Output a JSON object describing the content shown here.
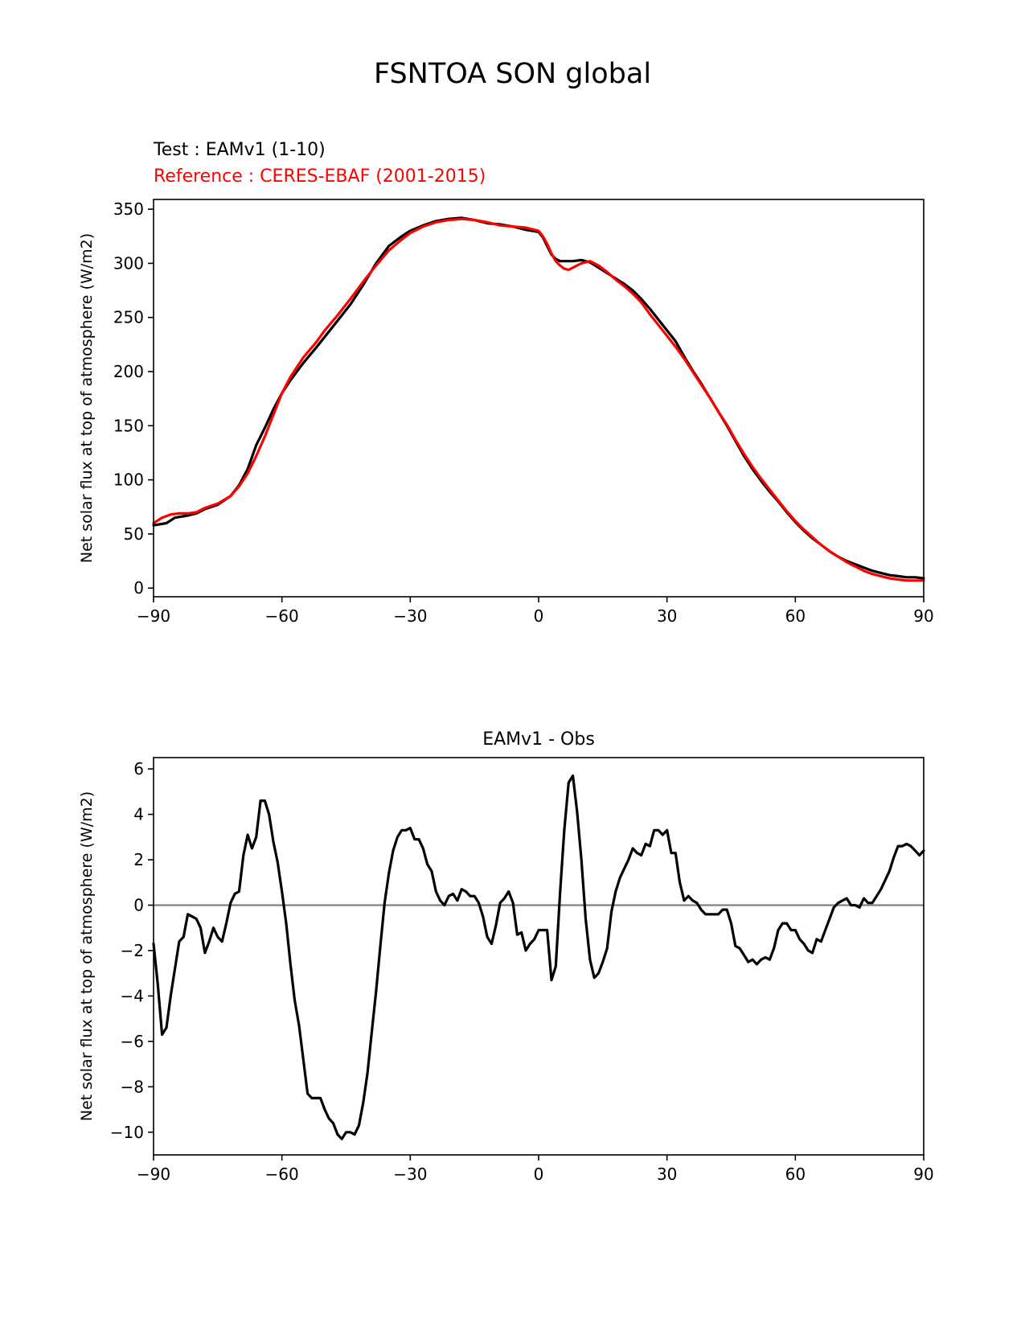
{
  "page": {
    "title": "FSNTOA SON global"
  },
  "chart_data": [
    {
      "type": "line",
      "title": "",
      "test_label": "Test : EAMv1 (1-10)",
      "reference_label": "Reference : CERES-EBAF (2001-2015)",
      "xlabel": "",
      "ylabel": "Net solar flux at top of atmosphere (W/m2)",
      "xlim": [
        -90,
        90
      ],
      "ylim": [
        -8,
        359
      ],
      "xticks": [
        -90,
        -60,
        -30,
        0,
        30,
        60,
        90
      ],
      "xtick_labels": [
        "−90",
        "−60",
        "−30",
        "0",
        "30",
        "60",
        "90"
      ],
      "yticks": [
        0,
        50,
        100,
        150,
        200,
        250,
        300,
        350
      ],
      "ytick_labels": [
        "0",
        "50",
        "100",
        "150",
        "200",
        "250",
        "300",
        "350"
      ],
      "grid": false,
      "series": [
        {
          "name": "EAMv1 (1-10)",
          "color": "#000000",
          "x": [
            -90,
            -87,
            -85,
            -82,
            -80,
            -78,
            -75,
            -72,
            -70,
            -68,
            -66,
            -64,
            -62,
            -60,
            -58,
            -55,
            -52,
            -50,
            -47,
            -44,
            -41,
            -38,
            -35,
            -32,
            -30,
            -27,
            -24,
            -21,
            -18,
            -15,
            -12,
            -9,
            -6,
            -3,
            0,
            1,
            2,
            3,
            4,
            5,
            6,
            8,
            10,
            12,
            14,
            16,
            18,
            20,
            22,
            24,
            26,
            28,
            30,
            32,
            34,
            36,
            38,
            40,
            42,
            44,
            46,
            48,
            50,
            52,
            54,
            56,
            58,
            60,
            62,
            64,
            66,
            68,
            70,
            72,
            74,
            76,
            78,
            80,
            82,
            84,
            86,
            88,
            90
          ],
          "y": [
            58,
            60,
            65,
            67,
            69,
            73,
            77,
            85,
            95,
            110,
            132,
            148,
            165,
            180,
            192,
            208,
            222,
            232,
            247,
            262,
            280,
            300,
            316,
            325,
            330,
            335,
            339,
            341,
            342,
            340,
            337,
            336,
            334,
            331,
            329,
            324,
            316,
            308,
            304,
            302,
            302,
            302,
            303,
            301,
            296,
            291,
            286,
            281,
            275,
            267,
            258,
            248,
            238,
            228,
            214,
            201,
            189,
            176,
            163,
            150,
            136,
            122,
            110,
            99,
            89,
            80,
            70,
            61,
            53,
            46,
            40,
            34,
            29,
            25,
            22,
            19,
            16,
            14,
            12,
            11,
            10,
            10,
            9
          ]
        },
        {
          "name": "CERES-EBAF (2001-2015)",
          "color": "#ff0000",
          "x": [
            -90,
            -88,
            -86,
            -84,
            -82,
            -80,
            -78,
            -75,
            -72,
            -70,
            -68,
            -66,
            -64,
            -62,
            -60,
            -58,
            -55,
            -52,
            -50,
            -47,
            -44,
            -41,
            -38,
            -35,
            -32,
            -30,
            -27,
            -24,
            -21,
            -18,
            -15,
            -12,
            -9,
            -6,
            -3,
            0,
            1,
            2,
            3,
            4,
            5,
            6,
            7,
            8,
            10,
            12,
            14,
            16,
            18,
            20,
            22,
            24,
            26,
            28,
            30,
            32,
            34,
            36,
            38,
            40,
            42,
            44,
            46,
            48,
            50,
            52,
            54,
            56,
            58,
            60,
            62,
            64,
            66,
            68,
            70,
            72,
            74,
            76,
            78,
            80,
            82,
            84,
            86,
            88,
            90
          ],
          "y": [
            60,
            65,
            68,
            69,
            69,
            70,
            74,
            78,
            85,
            94,
            106,
            122,
            140,
            160,
            180,
            195,
            213,
            227,
            238,
            252,
            267,
            283,
            298,
            312,
            322,
            328,
            334,
            338,
            340,
            341,
            340,
            338,
            335,
            334,
            333,
            330,
            325,
            318,
            309,
            302,
            298,
            295,
            294,
            296,
            300,
            302,
            298,
            292,
            285,
            279,
            272,
            264,
            253,
            243,
            233,
            223,
            212,
            200,
            188,
            176,
            163,
            151,
            137,
            124,
            112,
            101,
            91,
            81,
            71,
            62,
            54,
            47,
            40,
            34,
            29,
            24,
            20,
            16,
            13,
            11,
            9,
            8,
            7,
            7,
            7
          ]
        }
      ]
    },
    {
      "type": "line",
      "title": "EAMv1 - Obs",
      "xlabel": "",
      "ylabel": "Net solar flux at top of atmosphere (W/m2)",
      "xlim": [
        -90,
        90
      ],
      "ylim": [
        -11,
        6.5
      ],
      "xticks": [
        -90,
        -60,
        -30,
        0,
        30,
        60,
        90
      ],
      "xtick_labels": [
        "−90",
        "−60",
        "−30",
        "0",
        "30",
        "60",
        "90"
      ],
      "yticks": [
        6,
        4,
        2,
        0,
        -2,
        -4,
        -6,
        -8,
        -10
      ],
      "ytick_labels": [
        "6",
        "4",
        "2",
        "0",
        "−2",
        "−4",
        "−6",
        "−8",
        "−10"
      ],
      "grid": false,
      "zero_line_color": "#808080",
      "series": [
        {
          "name": "EAMv1 - Obs",
          "color": "#000000",
          "x": [
            -90,
            -89,
            -88,
            -87,
            -86,
            -85,
            -84,
            -83,
            -82,
            -81,
            -80,
            -79,
            -78,
            -77,
            -76,
            -75,
            -74,
            -73,
            -72,
            -71,
            -70,
            -69,
            -68,
            -67,
            -66,
            -65,
            -64,
            -63,
            -62,
            -61,
            -60,
            -59,
            -58,
            -57,
            -56,
            -55,
            -54,
            -53,
            -52,
            -51,
            -50,
            -49,
            -48,
            -47,
            -46,
            -45,
            -44,
            -43,
            -42,
            -41,
            -40,
            -39,
            -38,
            -37,
            -36,
            -35,
            -34,
            -33,
            -32,
            -31,
            -30,
            -29,
            -28,
            -27,
            -26,
            -25,
            -24,
            -23,
            -22,
            -21,
            -20,
            -19,
            -18,
            -17,
            -16,
            -15,
            -14,
            -13,
            -12,
            -11,
            -10,
            -9,
            -8,
            -7,
            -6,
            -5,
            -4,
            -3,
            -2,
            -1,
            0,
            1,
            2,
            3,
            4,
            5,
            6,
            7,
            8,
            9,
            10,
            11,
            12,
            13,
            14,
            15,
            16,
            17,
            18,
            19,
            20,
            21,
            22,
            23,
            24,
            25,
            26,
            27,
            28,
            29,
            30,
            31,
            32,
            33,
            34,
            35,
            36,
            37,
            38,
            39,
            40,
            41,
            42,
            43,
            44,
            45,
            46,
            47,
            48,
            49,
            50,
            51,
            52,
            53,
            54,
            55,
            56,
            57,
            58,
            59,
            60,
            61,
            62,
            63,
            64,
            65,
            66,
            67,
            68,
            69,
            70,
            71,
            72,
            73,
            74,
            75,
            76,
            77,
            78,
            79,
            80,
            81,
            82,
            83,
            84,
            85,
            86,
            87,
            88,
            89,
            90
          ],
          "y": [
            -1.7,
            -3.5,
            -5.7,
            -5.4,
            -4.0,
            -2.8,
            -1.6,
            -1.4,
            -0.4,
            -0.5,
            -0.6,
            -1.0,
            -2.1,
            -1.6,
            -1.0,
            -1.4,
            -1.6,
            -0.8,
            0.1,
            0.5,
            0.6,
            2.2,
            3.1,
            2.5,
            3.0,
            4.6,
            4.6,
            4.0,
            2.8,
            1.9,
            0.6,
            -0.8,
            -2.6,
            -4.2,
            -5.3,
            -6.8,
            -8.3,
            -8.5,
            -8.5,
            -8.5,
            -9.0,
            -9.4,
            -9.6,
            -10.1,
            -10.3,
            -10.0,
            -10.0,
            -10.1,
            -9.7,
            -8.7,
            -7.4,
            -5.6,
            -3.8,
            -1.8,
            0.1,
            1.4,
            2.4,
            3.0,
            3.3,
            3.3,
            3.4,
            2.9,
            2.9,
            2.5,
            1.8,
            1.5,
            0.6,
            0.2,
            0.0,
            0.4,
            0.5,
            0.2,
            0.7,
            0.6,
            0.4,
            0.4,
            0.1,
            -0.5,
            -1.4,
            -1.7,
            -0.9,
            0.1,
            0.3,
            0.6,
            0.1,
            -1.3,
            -1.2,
            -2.0,
            -1.7,
            -1.5,
            -1.1,
            -1.1,
            -1.1,
            -3.3,
            -2.7,
            0.5,
            3.3,
            5.4,
            5.7,
            4.1,
            2.0,
            -0.6,
            -2.4,
            -3.2,
            -3.0,
            -2.5,
            -1.9,
            -0.3,
            0.6,
            1.2,
            1.6,
            2.0,
            2.5,
            2.3,
            2.2,
            2.7,
            2.6,
            3.3,
            3.3,
            3.1,
            3.3,
            2.3,
            2.3,
            1.0,
            0.2,
            0.4,
            0.2,
            0.1,
            -0.2,
            -0.4,
            -0.4,
            -0.4,
            -0.4,
            -0.2,
            -0.2,
            -0.8,
            -1.8,
            -1.9,
            -2.2,
            -2.5,
            -2.4,
            -2.6,
            -2.4,
            -2.3,
            -2.4,
            -1.9,
            -1.1,
            -0.8,
            -0.8,
            -1.1,
            -1.1,
            -1.5,
            -1.7,
            -2.0,
            -2.1,
            -1.5,
            -1.6,
            -1.1,
            -0.6,
            -0.1,
            0.1,
            0.2,
            0.3,
            0.0,
            0.0,
            -0.1,
            0.3,
            0.1,
            0.1,
            0.4,
            0.7,
            1.1,
            1.5,
            2.1,
            2.6,
            2.6,
            2.7,
            2.6,
            2.4,
            2.2,
            2.4
          ]
        }
      ]
    }
  ]
}
